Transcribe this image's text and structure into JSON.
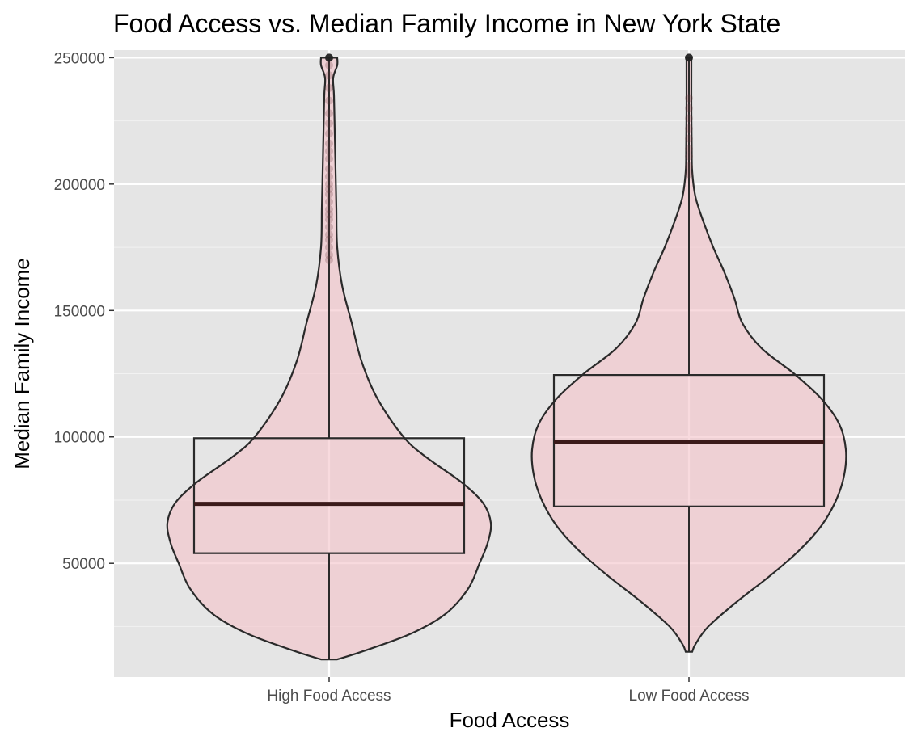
{
  "chart_data": {
    "type": "violin",
    "title": "Food Access vs. Median Family Income in New York State",
    "xlabel": "Food Access",
    "ylabel": "Median Family Income",
    "categories": [
      "High Food Access",
      "Low Food Access"
    ],
    "ylim": [
      5000,
      253000
    ],
    "y_ticks": [
      50000,
      100000,
      150000,
      200000,
      250000
    ],
    "y_tick_labels": [
      "50000",
      "100000",
      "150000",
      "200000",
      "250000"
    ],
    "grid": true,
    "background": "#e5e5e5",
    "violin_fill": "#f4c2c8",
    "outline_color": "#2a2a2a",
    "median_color": "#3b1a1a",
    "series": [
      {
        "category": "High Food Access",
        "min": 12000,
        "q1": 54000,
        "median": 73500,
        "q3": 99500,
        "max": 250000,
        "whisker_high": 250000,
        "outliers": [
          170000,
          172000,
          175000,
          178000,
          180000,
          183000,
          186000,
          188000,
          190000,
          193000,
          196000,
          198000,
          200000,
          203000,
          206000,
          210000,
          213000,
          216000,
          220000,
          224000,
          228000,
          233000,
          238000,
          243000,
          247000,
          250000
        ],
        "density": [
          [
            12000,
            0.05
          ],
          [
            15000,
            0.2
          ],
          [
            22000,
            0.5
          ],
          [
            30000,
            0.72
          ],
          [
            40000,
            0.86
          ],
          [
            50000,
            0.93
          ],
          [
            58000,
            0.98
          ],
          [
            66000,
            1.0
          ],
          [
            74000,
            0.95
          ],
          [
            82000,
            0.82
          ],
          [
            92000,
            0.6
          ],
          [
            100000,
            0.46
          ],
          [
            115000,
            0.3
          ],
          [
            130000,
            0.2
          ],
          [
            145000,
            0.14
          ],
          [
            160000,
            0.08
          ],
          [
            175000,
            0.05
          ],
          [
            190000,
            0.045
          ],
          [
            205000,
            0.04
          ],
          [
            220000,
            0.035
          ],
          [
            235000,
            0.03
          ],
          [
            242000,
            0.025
          ],
          [
            247000,
            0.05
          ],
          [
            250000,
            0.05
          ]
        ]
      },
      {
        "category": "Low Food Access",
        "min": 15000,
        "q1": 72500,
        "median": 98000,
        "q3": 124500,
        "max": 250000,
        "whisker_high": 250000,
        "outliers": [
          204000,
          207000,
          211000,
          214000,
          218000,
          222000,
          226000,
          230000,
          234000,
          250000
        ],
        "density": [
          [
            15000,
            0.02
          ],
          [
            18000,
            0.04
          ],
          [
            25000,
            0.12
          ],
          [
            35000,
            0.3
          ],
          [
            45000,
            0.5
          ],
          [
            55000,
            0.68
          ],
          [
            65000,
            0.82
          ],
          [
            75000,
            0.91
          ],
          [
            85000,
            0.96
          ],
          [
            95000,
            0.97
          ],
          [
            105000,
            0.93
          ],
          [
            115000,
            0.82
          ],
          [
            125000,
            0.65
          ],
          [
            135000,
            0.45
          ],
          [
            145000,
            0.33
          ],
          [
            155000,
            0.28
          ],
          [
            165000,
            0.22
          ],
          [
            175000,
            0.15
          ],
          [
            185000,
            0.09
          ],
          [
            195000,
            0.04
          ],
          [
            205000,
            0.02
          ],
          [
            215000,
            0.017
          ],
          [
            230000,
            0.015
          ],
          [
            245000,
            0.015
          ],
          [
            250000,
            0.015
          ]
        ]
      }
    ]
  }
}
